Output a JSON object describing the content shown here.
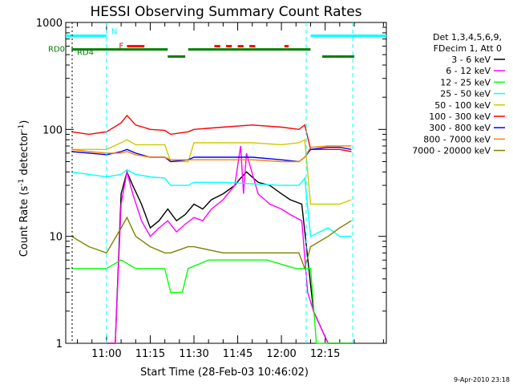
{
  "chart_data": {
    "type": "line",
    "title": "HESSI Observing Summary Count Rates",
    "xlabel": "Start Time (28-Feb-03 10:46:02)",
    "ylabel": "Count Rate (s⁻¹ detector⁻¹)",
    "ylabel_main": "Count Rate (s",
    "ylabel_mid": " detector",
    "ylabel_end": ")",
    "ylabel_sup": "-1",
    "y_scale": "log",
    "ylim": [
      1,
      1000
    ],
    "xlim_minutes": [
      -14,
      96
    ],
    "x_ticks": [
      {
        "m": 0,
        "label": "11:00"
      },
      {
        "m": 15,
        "label": "11:15"
      },
      {
        "m": 30,
        "label": "11:30"
      },
      {
        "m": 45,
        "label": "11:45"
      },
      {
        "m": 60,
        "label": "12:00"
      },
      {
        "m": 75,
        "label": "12:15"
      }
    ],
    "y_ticks": [
      {
        "v": 1,
        "label": "1"
      },
      {
        "v": 10,
        "label": "10"
      },
      {
        "v": 100,
        "label": "100"
      },
      {
        "v": 1000,
        "label": "1000"
      }
    ],
    "legend_placement": "right",
    "legend_header": [
      "Det 1,3,4,5,6,9,",
      "FDecim 1, Att 0"
    ],
    "series": [
      {
        "name": "3 - 6 keV",
        "color": "#000000",
        "points": [
          [
            0,
            1
          ],
          [
            3,
            1
          ],
          [
            5,
            25
          ],
          [
            7,
            40
          ],
          [
            9,
            30
          ],
          [
            12,
            20
          ],
          [
            15,
            12
          ],
          [
            18,
            14
          ],
          [
            21,
            18
          ],
          [
            24,
            14
          ],
          [
            27,
            16
          ],
          [
            30,
            20
          ],
          [
            33,
            18
          ],
          [
            36,
            22
          ],
          [
            40,
            25
          ],
          [
            44,
            30
          ],
          [
            46,
            35
          ],
          [
            48,
            40
          ],
          [
            52,
            32
          ],
          [
            56,
            30
          ],
          [
            60,
            25
          ],
          [
            63,
            22
          ],
          [
            67,
            20
          ],
          [
            71,
            2
          ],
          [
            76,
            1
          ],
          [
            80,
            1
          ],
          [
            84,
            1
          ]
        ]
      },
      {
        "name": "6 - 12 keV",
        "color": "#ff00ff",
        "points": [
          [
            0,
            1
          ],
          [
            3,
            1
          ],
          [
            5,
            20
          ],
          [
            7,
            40
          ],
          [
            9,
            25
          ],
          [
            12,
            14
          ],
          [
            15,
            10
          ],
          [
            18,
            12
          ],
          [
            21,
            14
          ],
          [
            24,
            11
          ],
          [
            27,
            13
          ],
          [
            30,
            15
          ],
          [
            33,
            14
          ],
          [
            36,
            18
          ],
          [
            40,
            22
          ],
          [
            44,
            30
          ],
          [
            46,
            70
          ],
          [
            47,
            25
          ],
          [
            48,
            60
          ],
          [
            52,
            25
          ],
          [
            56,
            20
          ],
          [
            60,
            18
          ],
          [
            63,
            16
          ],
          [
            67,
            14
          ],
          [
            69,
            3
          ],
          [
            71,
            2
          ],
          [
            76,
            1
          ],
          [
            80,
            1
          ],
          [
            84,
            1
          ]
        ]
      },
      {
        "name": "12 - 25 keV",
        "color": "#00ff00",
        "points": [
          [
            -12,
            5
          ],
          [
            -6,
            5
          ],
          [
            0,
            5
          ],
          [
            5,
            6
          ],
          [
            10,
            5
          ],
          [
            15,
            5
          ],
          [
            20,
            5
          ],
          [
            22,
            3
          ],
          [
            26,
            3
          ],
          [
            28,
            5
          ],
          [
            35,
            6
          ],
          [
            45,
            6
          ],
          [
            55,
            6
          ],
          [
            65,
            5
          ],
          [
            68,
            5
          ],
          [
            70,
            5
          ],
          [
            72,
            1
          ],
          [
            76,
            1
          ],
          [
            80,
            1
          ],
          [
            84,
            1
          ]
        ]
      },
      {
        "name": "25 - 50 keV",
        "color": "#00ffff",
        "points": [
          [
            -12,
            40
          ],
          [
            -6,
            38
          ],
          [
            0,
            36
          ],
          [
            5,
            38
          ],
          [
            7,
            42
          ],
          [
            10,
            38
          ],
          [
            15,
            36
          ],
          [
            20,
            35
          ],
          [
            22,
            30
          ],
          [
            28,
            30
          ],
          [
            30,
            32
          ],
          [
            40,
            32
          ],
          [
            50,
            31
          ],
          [
            60,
            30
          ],
          [
            66,
            30
          ],
          [
            68,
            35
          ],
          [
            70,
            10
          ],
          [
            76,
            12
          ],
          [
            80,
            10
          ],
          [
            84,
            10
          ]
        ]
      },
      {
        "name": "50 - 100 keV",
        "color": "#cccc00",
        "points": [
          [
            -12,
            65
          ],
          [
            -6,
            65
          ],
          [
            0,
            65
          ],
          [
            5,
            75
          ],
          [
            7,
            80
          ],
          [
            10,
            72
          ],
          [
            15,
            72
          ],
          [
            20,
            72
          ],
          [
            22,
            50
          ],
          [
            28,
            50
          ],
          [
            30,
            75
          ],
          [
            40,
            75
          ],
          [
            50,
            75
          ],
          [
            60,
            72
          ],
          [
            66,
            75
          ],
          [
            68,
            80
          ],
          [
            70,
            20
          ],
          [
            76,
            20
          ],
          [
            80,
            20
          ],
          [
            84,
            22
          ]
        ]
      },
      {
        "name": "100 - 300 keV",
        "color": "#ff0000",
        "points": [
          [
            -12,
            95
          ],
          [
            -6,
            90
          ],
          [
            0,
            95
          ],
          [
            5,
            115
          ],
          [
            7,
            135
          ],
          [
            10,
            110
          ],
          [
            15,
            100
          ],
          [
            20,
            98
          ],
          [
            22,
            90
          ],
          [
            28,
            95
          ],
          [
            30,
            100
          ],
          [
            40,
            105
          ],
          [
            50,
            110
          ],
          [
            60,
            105
          ],
          [
            66,
            100
          ],
          [
            68,
            110
          ],
          [
            70,
            65
          ],
          [
            76,
            65
          ],
          [
            80,
            65
          ],
          [
            84,
            62
          ]
        ]
      },
      {
        "name": "300 - 800 keV",
        "color": "#0000ff",
        "points": [
          [
            -12,
            62
          ],
          [
            -6,
            60
          ],
          [
            0,
            58
          ],
          [
            5,
            62
          ],
          [
            7,
            65
          ],
          [
            10,
            60
          ],
          [
            15,
            55
          ],
          [
            20,
            55
          ],
          [
            22,
            50
          ],
          [
            28,
            52
          ],
          [
            30,
            55
          ],
          [
            40,
            55
          ],
          [
            50,
            55
          ],
          [
            60,
            52
          ],
          [
            66,
            50
          ],
          [
            68,
            55
          ],
          [
            70,
            65
          ],
          [
            76,
            68
          ],
          [
            80,
            68
          ],
          [
            84,
            65
          ]
        ]
      },
      {
        "name": "800 - 7000 keV",
        "color": "#ff8000",
        "points": [
          [
            -12,
            65
          ],
          [
            -6,
            62
          ],
          [
            0,
            60
          ],
          [
            5,
            60
          ],
          [
            7,
            62
          ],
          [
            10,
            58
          ],
          [
            15,
            55
          ],
          [
            20,
            55
          ],
          [
            22,
            52
          ],
          [
            28,
            52
          ],
          [
            30,
            52
          ],
          [
            40,
            52
          ],
          [
            50,
            52
          ],
          [
            60,
            50
          ],
          [
            66,
            50
          ],
          [
            68,
            55
          ],
          [
            70,
            68
          ],
          [
            76,
            70
          ],
          [
            80,
            70
          ],
          [
            84,
            70
          ]
        ]
      },
      {
        "name": "7000 - 20000 keV",
        "color": "#808000",
        "points": [
          [
            -12,
            10
          ],
          [
            -6,
            8
          ],
          [
            0,
            7
          ],
          [
            5,
            12
          ],
          [
            7,
            15
          ],
          [
            10,
            10
          ],
          [
            15,
            8
          ],
          [
            20,
            7
          ],
          [
            22,
            7
          ],
          [
            28,
            8
          ],
          [
            30,
            8
          ],
          [
            40,
            7
          ],
          [
            50,
            7
          ],
          [
            60,
            7
          ],
          [
            66,
            7
          ],
          [
            68,
            5
          ],
          [
            70,
            8
          ],
          [
            76,
            10
          ],
          [
            80,
            12
          ],
          [
            84,
            14
          ]
        ]
      }
    ],
    "annotations": [
      {
        "label": "N",
        "color": "#00ffff"
      },
      {
        "label": "F",
        "color": "#ff0000"
      },
      {
        "label": "RD0",
        "color": "#008000"
      },
      {
        "label": "RD4",
        "color": "#008000"
      }
    ],
    "status_bars": {
      "N": {
        "color": "#00ffff",
        "value": 750,
        "segments": [
          [
            -14,
            0
          ],
          [
            70,
            96
          ]
        ]
      },
      "F": {
        "color": "#ff0000",
        "value": 600,
        "segments": [
          [
            7,
            13
          ],
          [
            37,
            39
          ],
          [
            41,
            43
          ],
          [
            45,
            47
          ],
          [
            49,
            51
          ],
          [
            61,
            62.5
          ]
        ]
      },
      "RD0": {
        "color": "#008000",
        "value": 560,
        "segments": [
          [
            -12,
            21
          ],
          [
            28,
            70
          ]
        ]
      },
      "RD4": {
        "color": "#008000",
        "value": 480,
        "segments": [
          [
            21,
            27
          ],
          [
            74,
            85
          ]
        ]
      }
    },
    "cyan_guides_minutes": [
      0,
      68.5,
      84.5
    ],
    "black_guide_minutes": [
      -14
    ]
  },
  "footer": {
    "timestamp": "9-Apr-2010 23:18"
  }
}
